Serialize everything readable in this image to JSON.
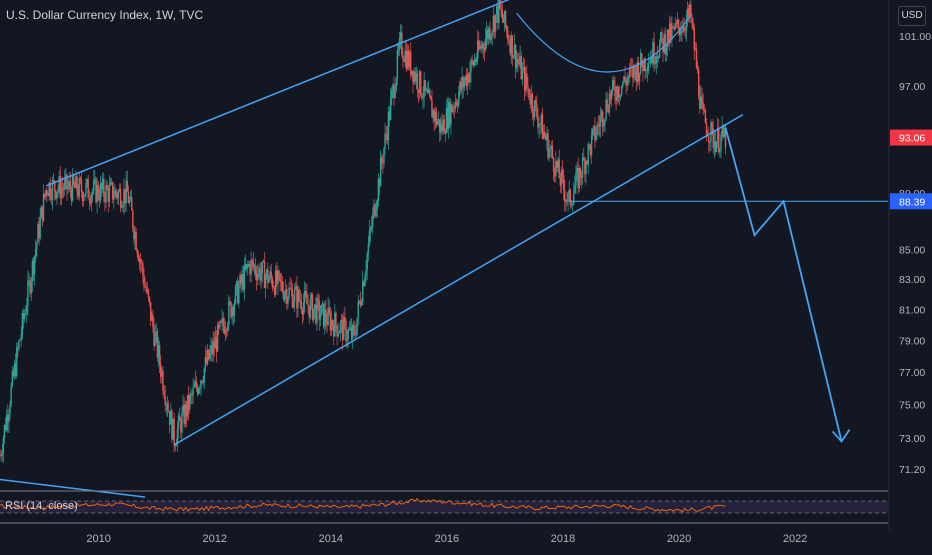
{
  "header": {
    "title": "U.S. Dollar Currency Index, 1W, TVC",
    "unit_button": "USD"
  },
  "rsi_panel": {
    "label": "RSI (14, close)"
  },
  "price_badges": [
    {
      "value": "93.06",
      "color": "#f23645"
    },
    {
      "value": "88.39",
      "color": "#2962ff"
    }
  ],
  "chart_data": {
    "type": "candlestick",
    "title": "U.S. Dollar Currency Index, 1W, TVC",
    "xlabel": "",
    "ylabel": "",
    "x_ticks": [
      "2010",
      "2012",
      "2014",
      "2016",
      "2018",
      "2020",
      "2022"
    ],
    "y_ticks": [
      "101.00",
      "97.00",
      "89.00",
      "85.00",
      "83.00",
      "81.00",
      "79.00",
      "77.00",
      "75.00",
      "73.00",
      "71.20"
    ],
    "x_range": [
      2008.3,
      2023.6
    ],
    "y_scale": "log",
    "y_range": [
      70.0,
      104.0
    ],
    "grid": false,
    "colors": {
      "up": "#26a69a",
      "down": "#ef5350",
      "drawings": "#42a5f5",
      "rsi": "#ff6d00",
      "background": "#131722"
    },
    "key_points": [
      {
        "x": 2008.3,
        "y": 72.0
      },
      {
        "x": 2009.1,
        "y": 89.5
      },
      {
        "x": 2010.5,
        "y": 88.9
      },
      {
        "x": 2011.3,
        "y": 73.0
      },
      {
        "x": 2012.6,
        "y": 84.0
      },
      {
        "x": 2014.4,
        "y": 79.2
      },
      {
        "x": 2015.2,
        "y": 100.4
      },
      {
        "x": 2015.9,
        "y": 93.7
      },
      {
        "x": 2016.9,
        "y": 103.2
      },
      {
        "x": 2018.1,
        "y": 88.3
      },
      {
        "x": 2018.8,
        "y": 96.2
      },
      {
        "x": 2020.2,
        "y": 102.7
      },
      {
        "x": 2020.4,
        "y": 94.6
      },
      {
        "x": 2020.6,
        "y": 92.9
      },
      {
        "x": 2020.8,
        "y": 93.06
      }
    ],
    "drawings": {
      "upper_channel": [
        [
          2009.1,
          89.5
        ],
        [
          2017.2,
          104.3
        ]
      ],
      "lower_channel": [
        [
          2011.3,
          72.6
        ],
        [
          2021.1,
          94.8
        ]
      ],
      "support_line": {
        "y": 88.39,
        "from_x": 2018.1
      },
      "projection": [
        [
          2020.8,
          93.8
        ],
        [
          2021.3,
          86.0
        ],
        [
          2021.8,
          88.39
        ],
        [
          2022.8,
          72.8
        ]
      ],
      "cup_arc": [
        [
          2017.2,
          102.9
        ],
        [
          2018.8,
          95.8
        ],
        [
          2020.2,
          102.7
        ]
      ],
      "lower_left_line": [
        [
          2008.3,
          70.6
        ],
        [
          2010.8,
          69.6
        ]
      ]
    },
    "rsi": {
      "label": "RSI (14, close)",
      "ylim": [
        0,
        100
      ],
      "bands": [
        30,
        70
      ],
      "values": [
        52,
        48,
        55,
        60,
        45,
        42,
        50,
        57,
        53,
        49,
        58,
        72,
        65,
        54,
        47,
        50,
        55,
        44,
        39,
        52
      ]
    }
  }
}
